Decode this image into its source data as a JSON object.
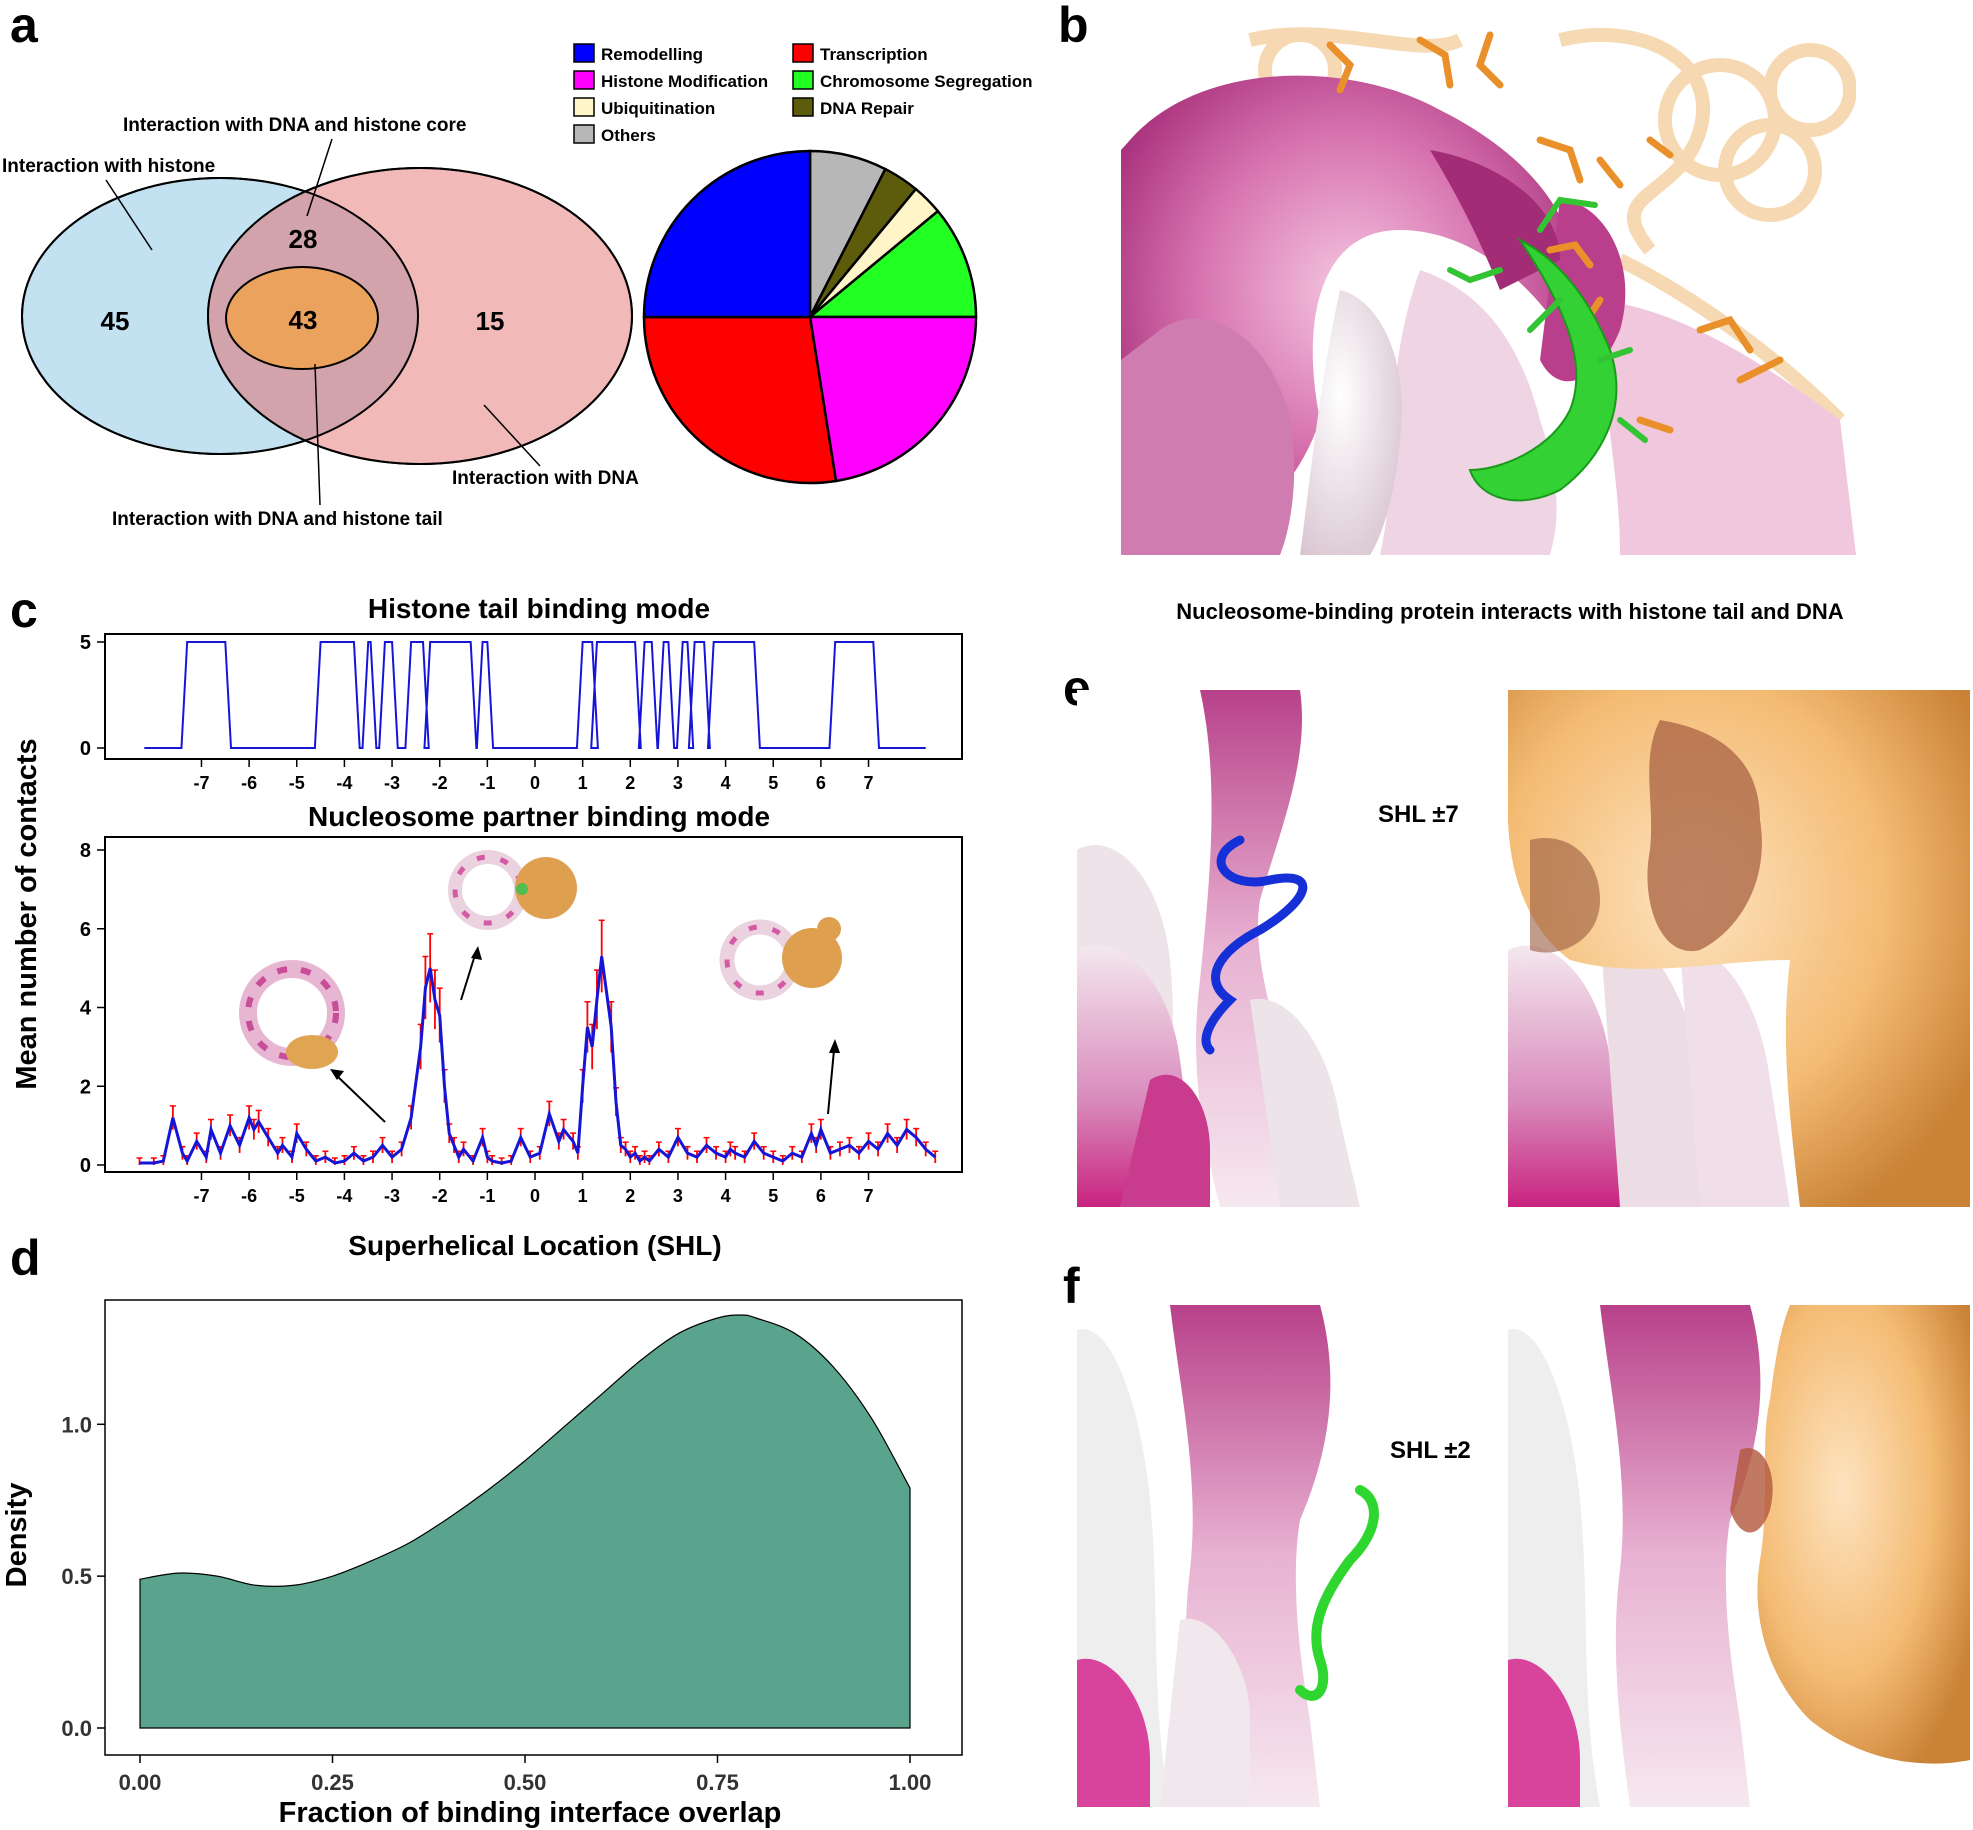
{
  "panels": {
    "a": "a",
    "b": "b",
    "c": "c",
    "d": "d",
    "e": "e",
    "f": "f"
  },
  "panel_a": {
    "venn": {
      "histone_only": "45",
      "dna_histone_core": "28",
      "dna_histone_tail": "43",
      "dna_only": "15",
      "label_histone": "Interaction with histone",
      "label_dna_core": "Interaction with DNA and histone core",
      "label_dna": "Interaction with DNA",
      "label_dna_tail": "Interaction with DNA and histone tail",
      "colors": {
        "histone": "#c2e1f1",
        "dna": "#f2b9b9",
        "overlap": "#d2a3aa",
        "tail": "#eaa25d"
      }
    },
    "legend": [
      {
        "label": "Remodelling",
        "color": "#0000ff"
      },
      {
        "label": "Transcription",
        "color": "#ff0000"
      },
      {
        "label": "Histone Modification",
        "color": "#ff00ff"
      },
      {
        "label": "Chromosome Segregation",
        "color": "#22ff22"
      },
      {
        "label": "Ubiquitination",
        "color": "#fff5c8"
      },
      {
        "label": "DNA Repair",
        "color": "#5c5c0c"
      },
      {
        "label": "Others",
        "color": "#b7b7b7"
      }
    ]
  },
  "panel_b": {
    "caption": "Nucleosome-binding protein interacts with histone tail and DNA"
  },
  "panel_c": {
    "ylabel": "Mean number of contacts",
    "top_title": "Histone tail binding mode",
    "bottom_title": "Nucleosome partner binding mode",
    "xlabel": "Superhelical Location (SHL)"
  },
  "panel_d": {
    "ylabel": "Density",
    "xlabel": "Fraction of binding interface overlap",
    "fill": "#5aa48e"
  },
  "panel_e": {
    "label": "SHL ±7"
  },
  "panel_f": {
    "label": "SHL ±2"
  },
  "chart_data": [
    {
      "id": "pie-categories",
      "type": "pie",
      "labels": [
        "Remodelling",
        "Histone Modification",
        "Ubiquitination",
        "Others",
        "Transcription",
        "Chromosome Segregation",
        "DNA Repair"
      ],
      "slices": [
        {
          "label": "Others",
          "value": 7.5,
          "color": "#b7b7b7"
        },
        {
          "label": "DNA Repair",
          "value": 3.5,
          "color": "#5c5c0c"
        },
        {
          "label": "Ubiquitination",
          "value": 3.0,
          "color": "#fff5c8"
        },
        {
          "label": "Chromosome Segregation",
          "value": 11.0,
          "color": "#22ff22"
        },
        {
          "label": "Histone Modification",
          "value": 22.5,
          "color": "#ff00ff"
        },
        {
          "label": "Transcription",
          "value": 27.5,
          "color": "#ff0000"
        },
        {
          "label": "Remodelling",
          "value": 25.0,
          "color": "#0000ff"
        }
      ]
    },
    {
      "id": "histone-tail-binding-mode",
      "type": "line",
      "title": "Histone tail binding mode",
      "xlim": [
        -8.5,
        8.5
      ],
      "ylim": [
        0,
        5
      ],
      "xticks": [
        "-7",
        "-6",
        "-5",
        "-4",
        "-3",
        "-2",
        "-1",
        "0",
        "1",
        "2",
        "3",
        "4",
        "5",
        "6",
        "7"
      ],
      "yticks": [
        "0",
        "5"
      ],
      "on_intervals": [
        [
          -7.3,
          -6.5
        ],
        [
          -4.5,
          -3.8
        ],
        [
          -3.5,
          -3.45
        ],
        [
          -3.15,
          -3.0
        ],
        [
          -2.6,
          -2.35
        ],
        [
          -2.2,
          -1.35
        ],
        [
          -1.1,
          -1.0
        ],
        [
          1.0,
          1.2
        ],
        [
          1.3,
          2.1
        ],
        [
          2.3,
          2.45
        ],
        [
          2.7,
          2.8
        ],
        [
          3.1,
          3.2
        ],
        [
          3.35,
          3.55
        ],
        [
          3.75,
          4.6
        ],
        [
          6.3,
          7.1
        ]
      ],
      "color": "#0000cc"
    },
    {
      "id": "nucleosome-partner-binding-mode",
      "type": "line",
      "title": "Nucleosome partner binding mode",
      "xlabel": "Superhelical Location (SHL)",
      "xlim": [
        -8.5,
        8.5
      ],
      "ylim": [
        0,
        8
      ],
      "xticks": [
        "-7",
        "-6",
        "-5",
        "-4",
        "-3",
        "-2",
        "-1",
        "0",
        "1",
        "2",
        "3",
        "4",
        "5",
        "6",
        "7"
      ],
      "yticks": [
        "0",
        "2",
        "4",
        "6",
        "8"
      ],
      "series": [
        {
          "x": [
            -8.3,
            -8.0,
            -7.8,
            -7.6,
            -7.4,
            -7.3,
            -7.1,
            -6.9,
            -6.8,
            -6.6,
            -6.4,
            -6.2,
            -6.0,
            -5.9,
            -5.8,
            -5.6,
            -5.4,
            -5.3,
            -5.1,
            -5.0,
            -4.8,
            -4.6,
            -4.4,
            -4.2,
            -4.0,
            -3.8,
            -3.6,
            -3.4,
            -3.2,
            -3.0,
            -2.8,
            -2.6,
            -2.4,
            -2.3,
            -2.2,
            -2.1,
            -2.0,
            -1.9,
            -1.8,
            -1.7,
            -1.6,
            -1.5,
            -1.3,
            -1.1,
            -1.0,
            -0.9,
            -0.7,
            -0.5,
            -0.3,
            -0.1,
            0.1,
            0.3,
            0.5,
            0.6,
            0.8,
            0.9,
            1.0,
            1.1,
            1.2,
            1.3,
            1.4,
            1.6,
            1.7,
            1.8,
            1.9,
            2.0,
            2.1,
            2.2,
            2.3,
            2.4,
            2.6,
            2.8,
            3.0,
            3.2,
            3.4,
            3.6,
            3.8,
            4.0,
            4.1,
            4.2,
            4.4,
            4.6,
            4.8,
            5.0,
            5.2,
            5.4,
            5.6,
            5.8,
            5.9,
            6.0,
            6.2,
            6.4,
            6.6,
            6.8,
            7.0,
            7.2,
            7.4,
            7.6,
            7.8,
            8.0,
            8.2,
            8.4
          ],
          "y": [
            0.05,
            0.05,
            0.1,
            1.2,
            0.3,
            0.1,
            0.6,
            0.2,
            0.9,
            0.3,
            1.0,
            0.5,
            1.2,
            0.9,
            1.1,
            0.7,
            0.3,
            0.5,
            0.2,
            0.8,
            0.4,
            0.1,
            0.2,
            0.05,
            0.1,
            0.3,
            0.1,
            0.2,
            0.5,
            0.2,
            0.4,
            1.2,
            3.0,
            4.5,
            5.0,
            4.2,
            3.8,
            2.0,
            0.8,
            0.5,
            0.2,
            0.4,
            0.1,
            0.7,
            0.2,
            0.1,
            0.05,
            0.1,
            0.7,
            0.2,
            0.3,
            1.3,
            0.6,
            0.9,
            0.6,
            0.3,
            2.0,
            3.5,
            3.0,
            4.2,
            5.3,
            3.5,
            1.6,
            0.5,
            0.4,
            0.2,
            0.3,
            0.1,
            0.2,
            0.1,
            0.4,
            0.2,
            0.7,
            0.3,
            0.2,
            0.5,
            0.3,
            0.2,
            0.4,
            0.3,
            0.2,
            0.6,
            0.3,
            0.2,
            0.1,
            0.3,
            0.2,
            0.8,
            0.5,
            0.9,
            0.3,
            0.4,
            0.5,
            0.3,
            0.6,
            0.4,
            0.8,
            0.5,
            0.9,
            0.7,
            0.4,
            0.2
          ],
          "color": "#0000cc",
          "error_color": "#ff0000"
        }
      ]
    },
    {
      "id": "interface-overlap-density",
      "type": "area",
      "xlabel": "Fraction of binding interface overlap",
      "ylabel": "Density",
      "xlim": [
        0,
        1
      ],
      "ylim": [
        0,
        1.35
      ],
      "xticks": [
        "0.00",
        "0.25",
        "0.50",
        "0.75",
        "1.00"
      ],
      "yticks": [
        "0.0",
        "0.5",
        "1.0"
      ],
      "x": [
        0.0,
        0.05,
        0.1,
        0.15,
        0.2,
        0.25,
        0.3,
        0.35,
        0.4,
        0.45,
        0.5,
        0.55,
        0.6,
        0.65,
        0.7,
        0.75,
        0.78,
        0.8,
        0.85,
        0.9,
        0.95,
        1.0
      ],
      "y": [
        0.49,
        0.51,
        0.5,
        0.47,
        0.47,
        0.5,
        0.55,
        0.61,
        0.69,
        0.78,
        0.88,
        0.99,
        1.1,
        1.21,
        1.3,
        1.35,
        1.36,
        1.35,
        1.3,
        1.19,
        1.02,
        0.79
      ],
      "color": "#5aa48e"
    }
  ]
}
